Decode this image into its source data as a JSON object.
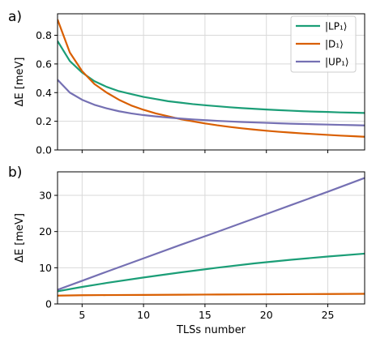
{
  "chart_data": [
    {
      "panel_label": "a)",
      "type": "line",
      "ylabel": "ΔE [meV]",
      "xlabel": "",
      "xlim": [
        3,
        28
      ],
      "ylim": [
        0,
        0.95
      ],
      "x_ticks": [
        5,
        10,
        15,
        20,
        25
      ],
      "y_ticks": [
        0.0,
        0.2,
        0.4,
        0.6,
        0.8
      ],
      "y_tick_labels": [
        "0.0",
        "0.2",
        "0.4",
        "0.6",
        "0.8"
      ],
      "grid": true,
      "legend": "top-right",
      "x": [
        3,
        4,
        5,
        6,
        7,
        8,
        9,
        10,
        11,
        12,
        13,
        14,
        15,
        16,
        17,
        18,
        19,
        20,
        21,
        22,
        23,
        24,
        25,
        26,
        27,
        28
      ],
      "series": [
        {
          "name": "|LP₁⟩",
          "color": "#1b9e77",
          "values": [
            0.76,
            0.62,
            0.54,
            0.48,
            0.44,
            0.41,
            0.39,
            0.37,
            0.355,
            0.34,
            0.33,
            0.32,
            0.312,
            0.305,
            0.298,
            0.292,
            0.287,
            0.282,
            0.278,
            0.274,
            0.27,
            0.267,
            0.265,
            0.262,
            0.26,
            0.258
          ]
        },
        {
          "name": "|D₁⟩",
          "color": "#d95f02",
          "values": [
            0.91,
            0.68,
            0.55,
            0.46,
            0.4,
            0.35,
            0.31,
            0.28,
            0.255,
            0.235,
            0.215,
            0.2,
            0.185,
            0.172,
            0.161,
            0.151,
            0.142,
            0.134,
            0.127,
            0.121,
            0.115,
            0.11,
            0.105,
            0.1,
            0.096,
            0.092
          ]
        },
        {
          "name": "|UP₁⟩",
          "color": "#7570b3",
          "values": [
            0.49,
            0.4,
            0.35,
            0.315,
            0.29,
            0.27,
            0.255,
            0.243,
            0.234,
            0.226,
            0.219,
            0.213,
            0.208,
            0.203,
            0.199,
            0.195,
            0.192,
            0.189,
            0.186,
            0.183,
            0.181,
            0.179,
            0.177,
            0.175,
            0.173,
            0.171
          ]
        }
      ]
    },
    {
      "panel_label": "b)",
      "type": "line",
      "ylabel": "ΔE [meV]",
      "xlabel": "TLSs number",
      "xlim": [
        3,
        28
      ],
      "ylim": [
        0,
        36.5
      ],
      "x_ticks": [
        5,
        10,
        15,
        20,
        25
      ],
      "x_tick_labels": [
        "5",
        "10",
        "15",
        "20",
        "25"
      ],
      "y_ticks": [
        0,
        10,
        20,
        30
      ],
      "y_tick_labels": [
        "0",
        "10",
        "20",
        "30"
      ],
      "grid": true,
      "x": [
        3,
        5,
        7,
        10,
        13,
        16,
        19,
        22,
        25,
        28
      ],
      "series": [
        {
          "color": "#1b9e77",
          "values": [
            3.5,
            4.7,
            5.8,
            7.3,
            8.7,
            10.0,
            11.2,
            12.2,
            13.1,
            13.9
          ]
        },
        {
          "color": "#d95f02",
          "values": [
            2.3,
            2.4,
            2.45,
            2.5,
            2.55,
            2.6,
            2.65,
            2.7,
            2.75,
            2.8
          ]
        },
        {
          "color": "#7570b3",
          "values": [
            3.9,
            6.4,
            8.9,
            12.6,
            16.3,
            19.9,
            23.6,
            27.3,
            31.0,
            34.8
          ]
        }
      ]
    }
  ]
}
